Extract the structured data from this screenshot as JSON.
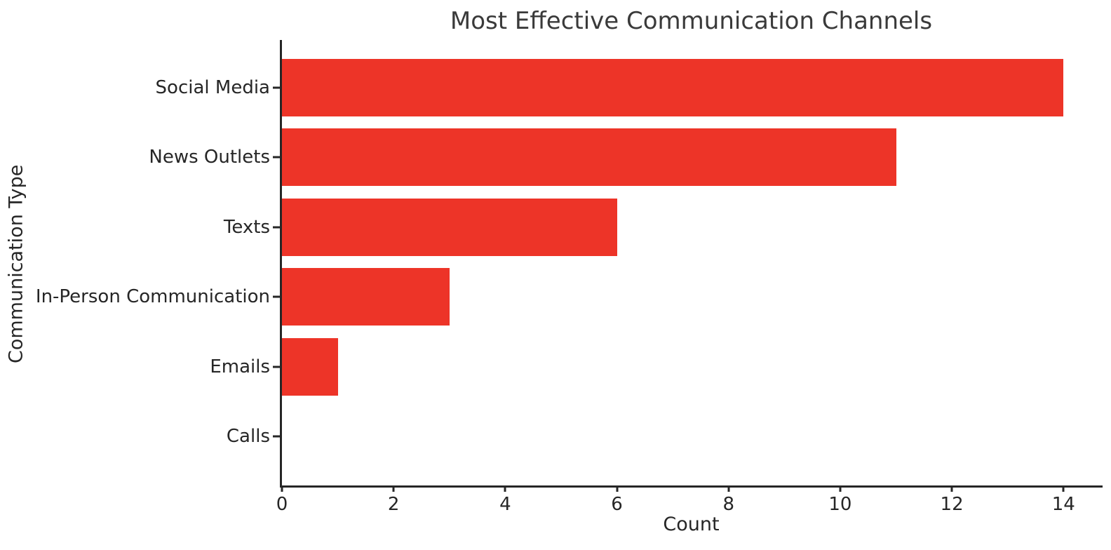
{
  "chart_data": {
    "type": "bar",
    "orientation": "horizontal",
    "title": "Most Effective Communication Channels",
    "xlabel": "Count",
    "ylabel": "Communication Type",
    "categories": [
      "Social Media",
      "News Outlets",
      "Texts",
      "In-Person Communication",
      "Emails",
      "Calls"
    ],
    "values": [
      14,
      11,
      6,
      3,
      1,
      0
    ],
    "xticks": [
      0,
      2,
      4,
      6,
      8,
      10,
      12,
      14
    ],
    "xlim": [
      0,
      14.7
    ],
    "grid": false,
    "legend": false,
    "bar_color": "#ed3428",
    "text_color": "#262626",
    "title_color": "#3a3a3a",
    "spines": [
      "left",
      "bottom"
    ]
  }
}
